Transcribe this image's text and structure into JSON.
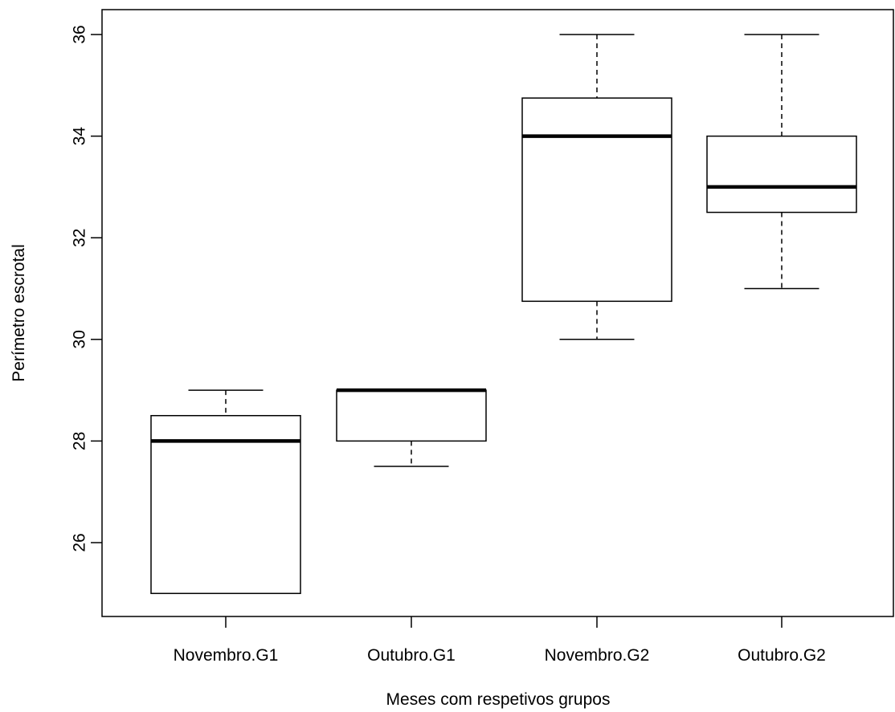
{
  "chart_data": {
    "type": "boxplot",
    "title": "",
    "xlabel": "Meses com respetivos grupos",
    "ylabel": "Perímetro escrotal",
    "ylim": [
      24.5,
      36.5
    ],
    "yticks": [
      26,
      28,
      30,
      32,
      34,
      36
    ],
    "grid": false,
    "categories": [
      "Novembro.G1",
      "Outubro.G1",
      "Novembro.G2",
      "Outubro.G2"
    ],
    "boxes": [
      {
        "category": "Novembro.G1",
        "whisker_low": 25.0,
        "q1": 25.0,
        "median": 28.0,
        "q3": 28.5,
        "whisker_high": 29.0
      },
      {
        "category": "Outubro.G1",
        "whisker_low": 27.5,
        "q1": 28.0,
        "median": 29.0,
        "q3": 29.0,
        "whisker_high": 29.0
      },
      {
        "category": "Novembro.G2",
        "whisker_low": 30.0,
        "q1": 30.75,
        "median": 34.0,
        "q3": 34.75,
        "whisker_high": 36.0
      },
      {
        "category": "Outubro.G2",
        "whisker_low": 31.0,
        "q1": 32.5,
        "median": 33.0,
        "q3": 34.0,
        "whisker_high": 36.0
      }
    ]
  },
  "colors": {
    "box_fill": "#ffffff",
    "stroke": "#000000"
  }
}
